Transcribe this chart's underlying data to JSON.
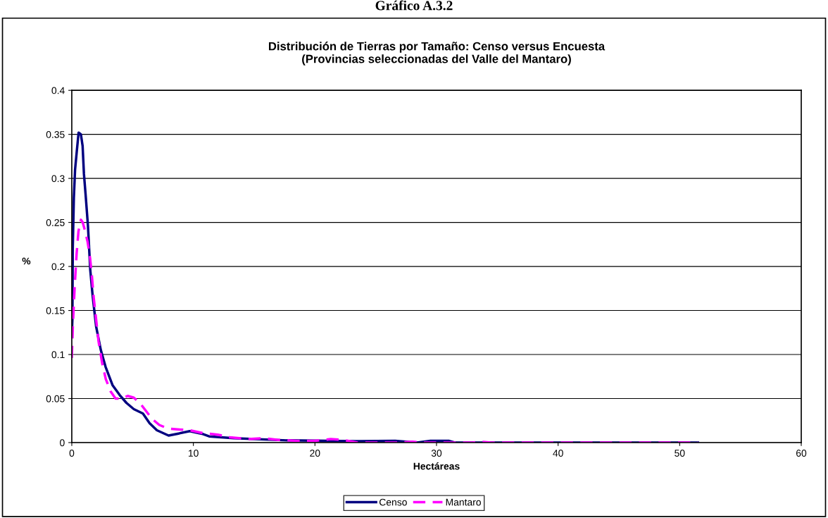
{
  "chart_data": {
    "type": "line",
    "title": "Distribución de Tierras por Tamaño: Censo versus Encuesta\n(Provincias seleccionadas del Valle del Mantaro)",
    "xlabel": "Hectáreas",
    "ylabel": "%",
    "annotations": [
      "Gráfico A.3.2"
    ],
    "xlim": [
      0,
      60
    ],
    "xticks": [
      0,
      10,
      20,
      30,
      40,
      50,
      60
    ],
    "ylim": [
      0,
      0.4
    ],
    "yticks": [
      0,
      0.05,
      0.1,
      0.15,
      0.2,
      0.25,
      0.3,
      0.35,
      0.4
    ],
    "grid": "y",
    "legend": "bottom",
    "series": [
      {
        "name": "Censo",
        "color": "#000080",
        "line_style": "solid",
        "x": [
          0,
          0.05,
          0.08,
          0.17,
          0.27,
          0.42,
          0.56,
          0.75,
          0.89,
          1.0,
          1.14,
          1.33,
          1.52,
          1.72,
          2.0,
          2.39,
          2.78,
          3.36,
          3.94,
          4.5,
          5.1,
          5.85,
          6.4,
          7.0,
          7.96,
          8.7,
          9.7,
          10.7,
          11.3,
          13.3,
          17.7,
          23.3,
          26.6,
          28.4,
          29.5,
          31,
          31.5,
          51.5
        ],
        "values": [
          0.12,
          0.14,
          0.22,
          0.278,
          0.31,
          0.332,
          0.352,
          0.35,
          0.337,
          0.305,
          0.281,
          0.246,
          0.196,
          0.166,
          0.132,
          0.105,
          0.086,
          0.065,
          0.054,
          0.045,
          0.038,
          0.033,
          0.022,
          0.014,
          0.008,
          0.01,
          0.013,
          0.01,
          0.007,
          0.005,
          0.0025,
          0.0015,
          0.002,
          0,
          0.002,
          0.002,
          0,
          0
        ]
      },
      {
        "name": "Mantaro",
        "color": "#ff00ff",
        "line_style": "dashed",
        "x": [
          0,
          0.1,
          0.25,
          0.4,
          0.55,
          0.75,
          0.9,
          1.1,
          1.3,
          1.5,
          1.65,
          1.8,
          2.0,
          2.2,
          2.5,
          2.8,
          3.2,
          3.6,
          4.1,
          4.6,
          5.1,
          5.6,
          6.1,
          6.6,
          7.2,
          7.9,
          8.7,
          9.7,
          10.7,
          12,
          13,
          14.5,
          15.8,
          17,
          18.5,
          20,
          21.3,
          22.3,
          23.5,
          27,
          28,
          29,
          33,
          33.5,
          34.5,
          51.5
        ],
        "values": [
          0.096,
          0.137,
          0.18,
          0.215,
          0.24,
          0.253,
          0.25,
          0.24,
          0.228,
          0.21,
          0.19,
          0.165,
          0.14,
          0.115,
          0.09,
          0.072,
          0.058,
          0.05,
          0.05,
          0.053,
          0.051,
          0.045,
          0.036,
          0.027,
          0.02,
          0.016,
          0.015,
          0.014,
          0.011,
          0.009,
          0.006,
          0.004,
          0.005,
          0.003,
          0.002,
          0.002,
          0.004,
          0.003,
          0,
          0,
          0.001,
          0,
          0,
          0.001,
          0,
          0
        ]
      }
    ]
  }
}
